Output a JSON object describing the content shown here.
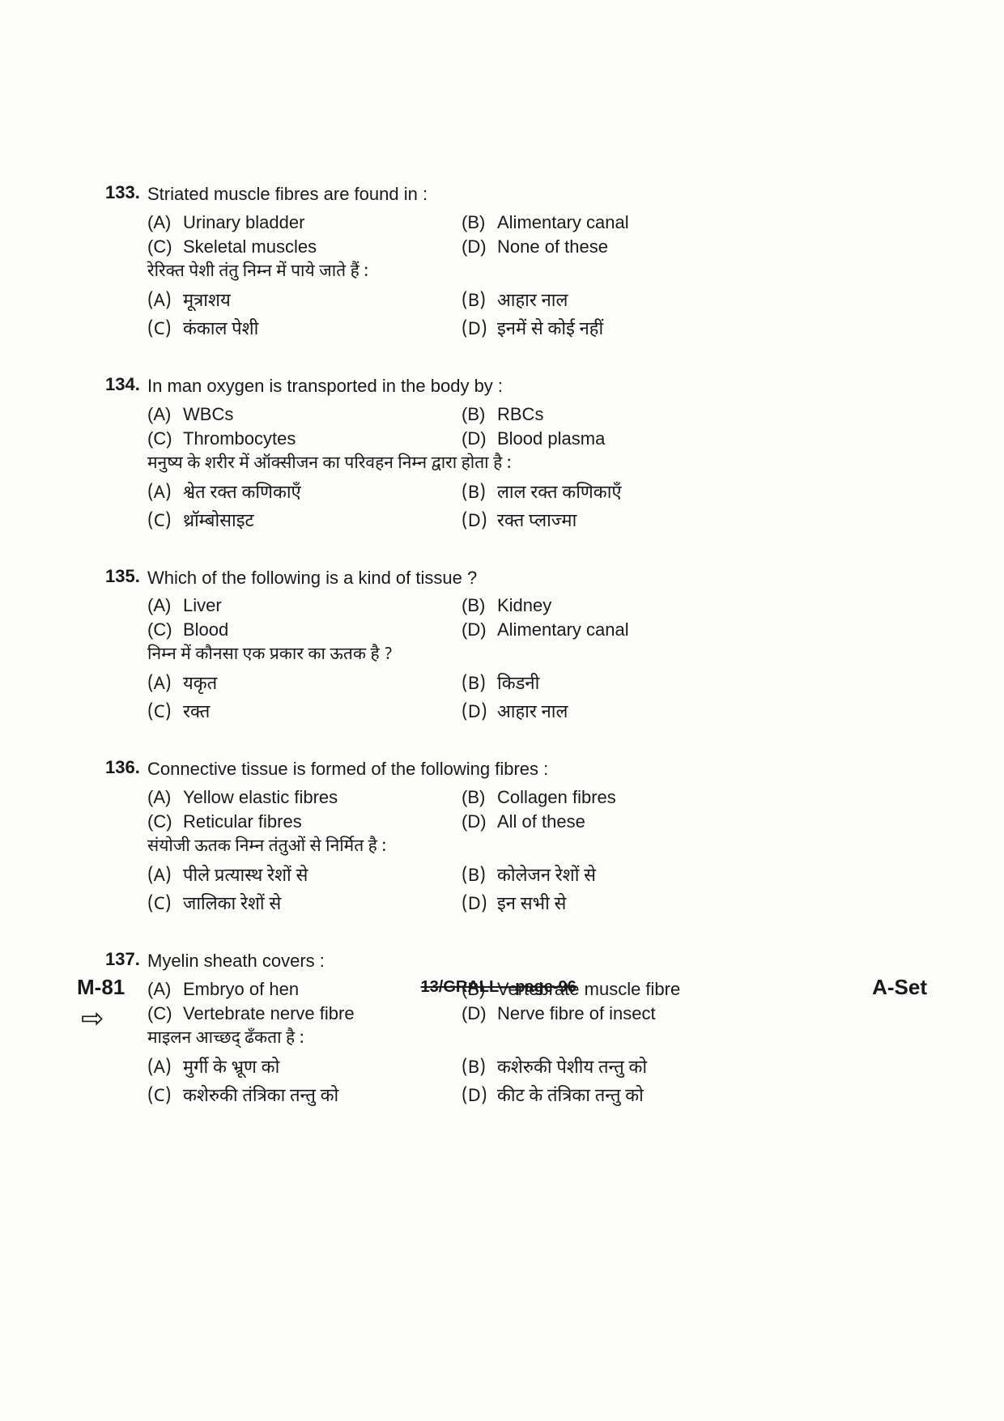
{
  "questions": [
    {
      "num": "133.",
      "stem_en": "Striated muscle fibres are found in :",
      "opts_en": {
        "A": "Urinary bladder",
        "B": "Alimentary canal",
        "C": "Skeletal muscles",
        "D": "None of these"
      },
      "stem_hi": "रेरिक्त पेशी तंतु निम्न में पाये जाते हैं :",
      "opts_hi": {
        "A": "मूत्राशय",
        "B": "आहार नाल",
        "C": "कंकाल पेशी",
        "D": "इनमें से कोई नहीं"
      }
    },
    {
      "num": "134.",
      "stem_en": "In man oxygen is transported in the body by :",
      "opts_en": {
        "A": "WBCs",
        "B": "RBCs",
        "C": "Thrombocytes",
        "D": "Blood plasma"
      },
      "stem_hi": "मनुष्य के शरीर में ऑक्सीजन का परिवहन निम्न द्वारा होता है :",
      "opts_hi": {
        "A": "श्वेत रक्त कणिकाएँ",
        "B": "लाल रक्त कणिकाएँ",
        "C": "थ्रॉम्बोसाइट",
        "D": "रक्त प्लाज्मा"
      }
    },
    {
      "num": "135.",
      "stem_en": "Which of the following is a kind of tissue ?",
      "opts_en": {
        "A": "Liver",
        "B": "Kidney",
        "C": "Blood",
        "D": "Alimentary canal"
      },
      "stem_hi": "निम्न में कौनसा एक प्रकार का ऊतक है ?",
      "opts_hi": {
        "A": "यकृत",
        "B": "किडनी",
        "C": "रक्त",
        "D": "आहार नाल"
      }
    },
    {
      "num": "136.",
      "stem_en": "Connective tissue is formed of the following fibres :",
      "opts_en": {
        "A": "Yellow elastic fibres",
        "B": "Collagen fibres",
        "C": "Reticular fibres",
        "D": "All of these"
      },
      "stem_hi": "संयोजी ऊतक निम्न तंतुओं से निर्मित है :",
      "opts_hi": {
        "A": "पीले प्रत्यास्थ रेशों से",
        "B": "कोलेजन रेशों से",
        "C": "जालिका रेशों से",
        "D": "इन सभी से"
      }
    },
    {
      "num": "137.",
      "stem_en": "Myelin sheath covers :",
      "opts_en": {
        "A": "Embryo of hen",
        "B": "Vertebrate muscle fibre",
        "C": "Vertebrate nerve fibre",
        "D": "Nerve fibre of insect"
      },
      "stem_hi": "माइलन आच्छद् ढँकता है :",
      "opts_hi": {
        "A": "मुर्गी के भ्रूण को",
        "B": "कशेरुकी पेशीय तन्तु को",
        "C": "कशेरुकी तंत्रिका तन्तु को",
        "D": "कीट के तंत्रिका तन्तु को"
      }
    }
  ],
  "labels": {
    "A": "(A)",
    "B": "(B)",
    "C": "(C)",
    "D": "(D)"
  },
  "footer": {
    "left": "M-81",
    "center": "13/GRALL—page-96",
    "right": "A-Set"
  },
  "arrow": "⇨"
}
